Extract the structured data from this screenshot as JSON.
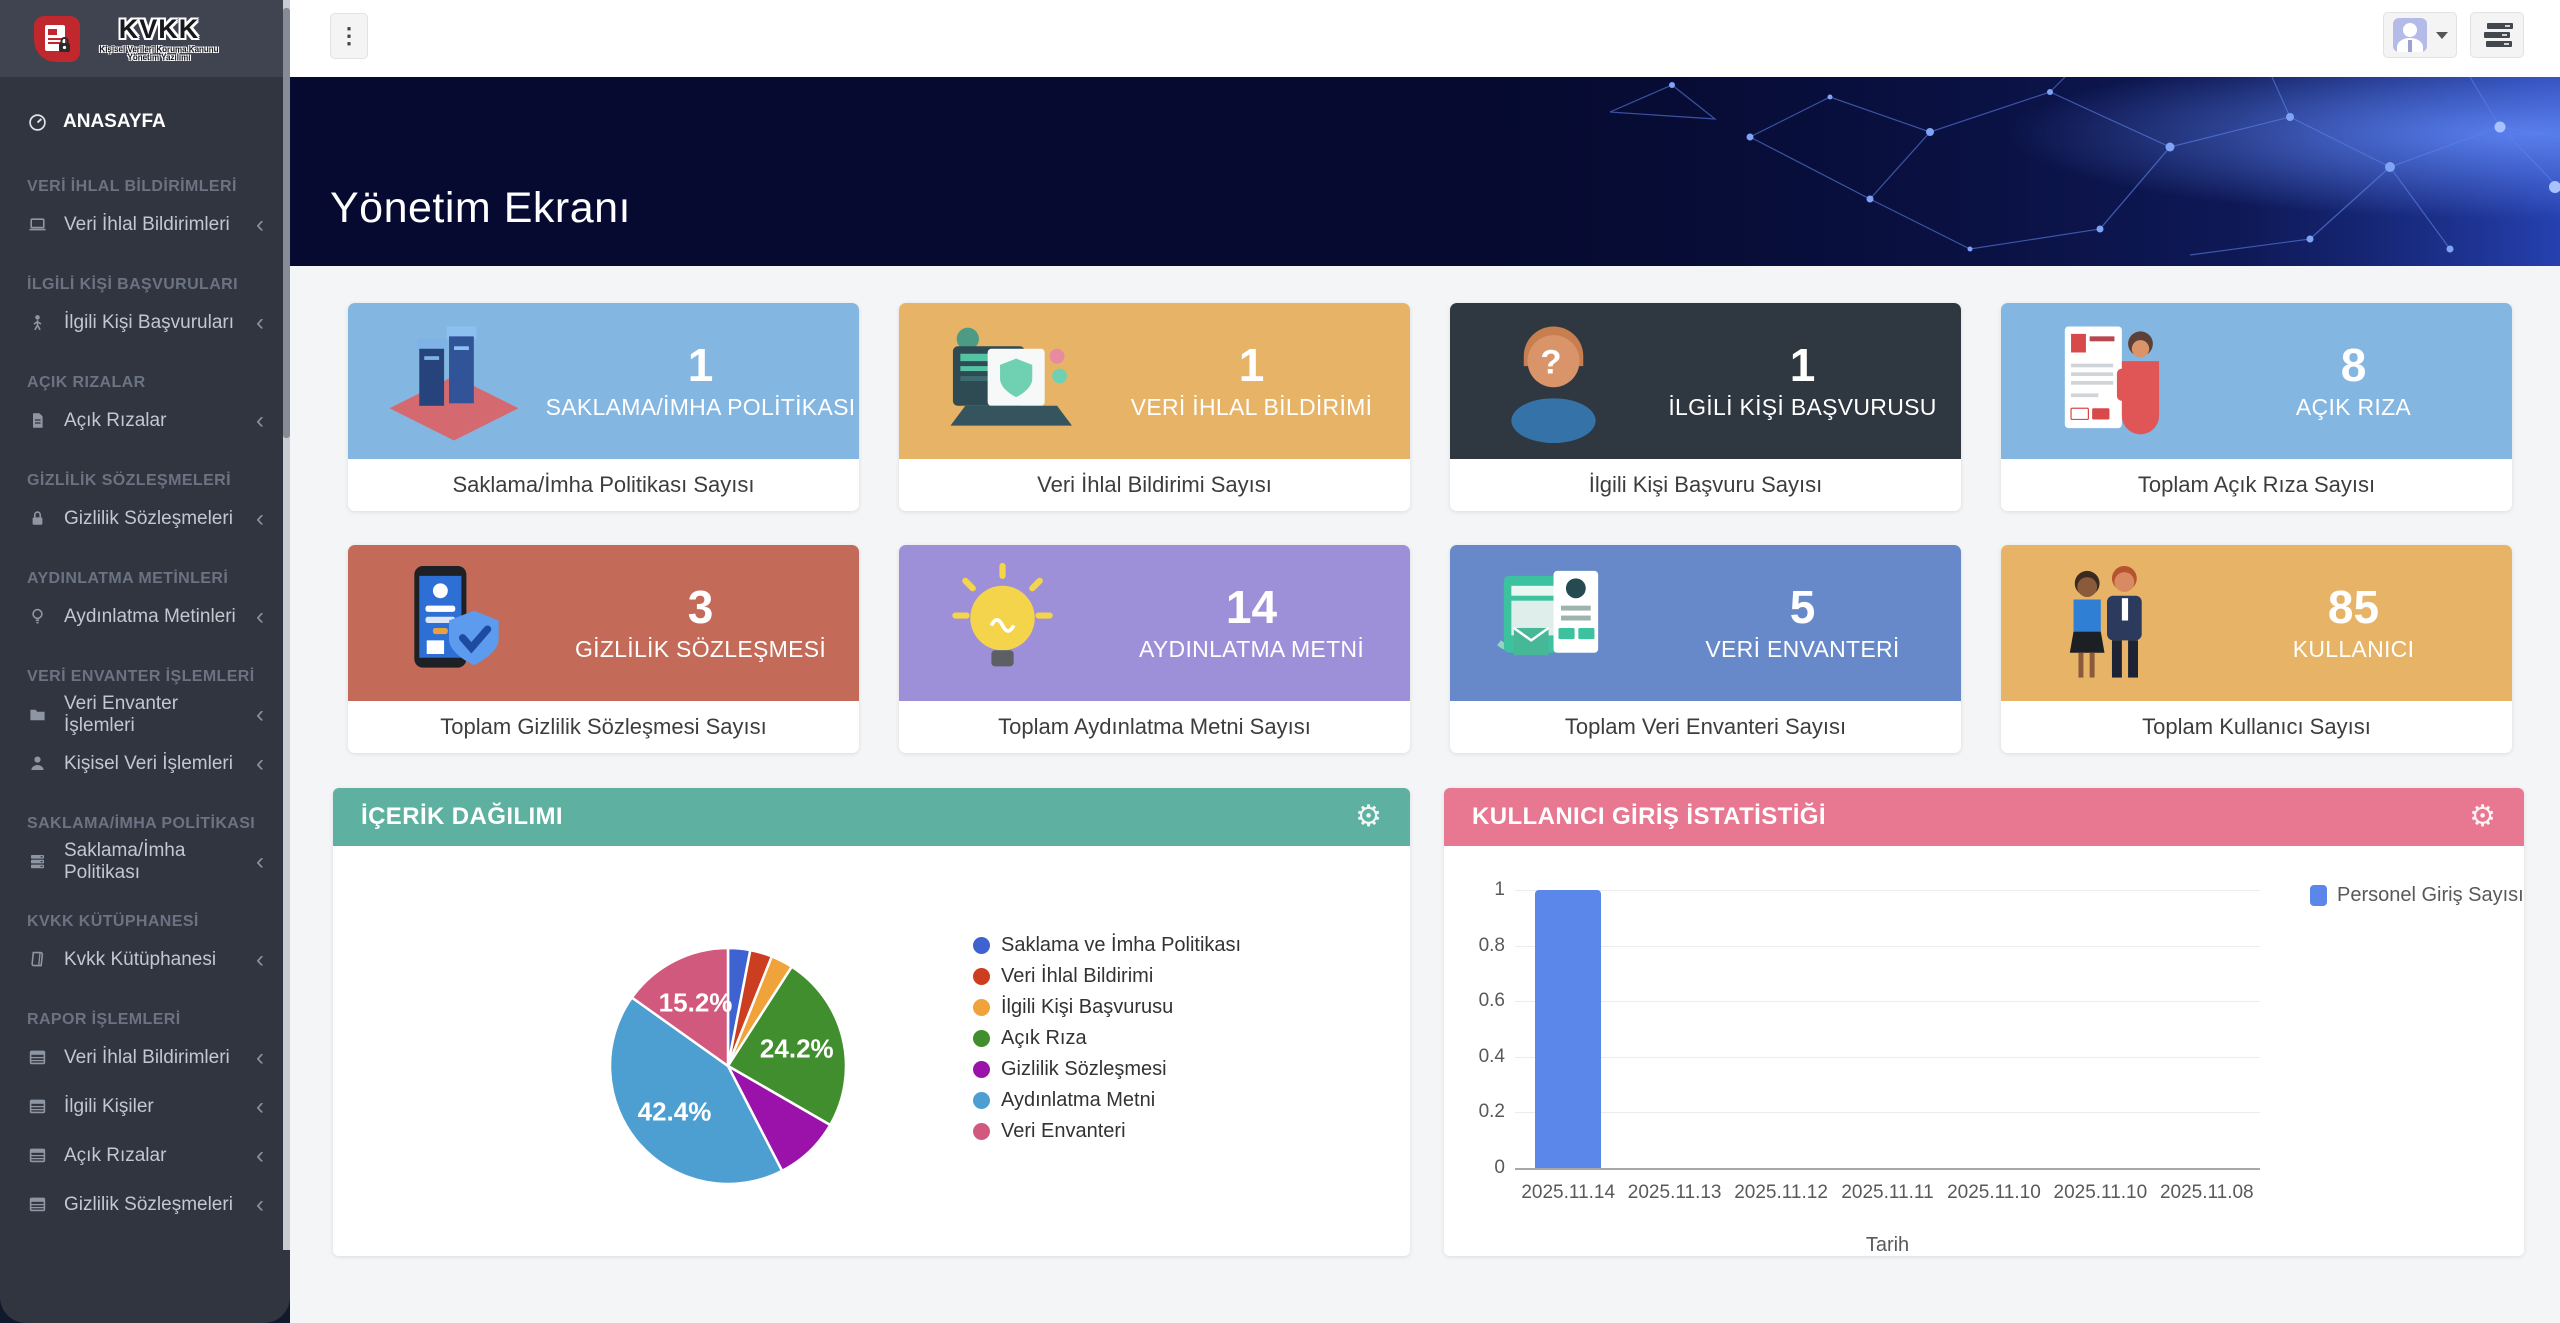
{
  "sidebar": {
    "logo": {
      "title": "KVKK",
      "subtitle": "Kişisel Verileri Koruma Kanunu Yönetim Yazılımı",
      "badge_icon": "document-lock-icon"
    },
    "home": {
      "label": "ANASAYFA",
      "icon": "gauge-icon"
    },
    "sections": [
      {
        "header": "VERİ İHLAL BİLDİRİMLERİ",
        "items": [
          {
            "label": "Veri İhlal Bildirimleri",
            "icon": "laptop-icon"
          }
        ]
      },
      {
        "header": "İLGİLİ KİŞİ BAŞVURULARI",
        "items": [
          {
            "label": "İlgili Kişi Başvuruları",
            "icon": "person-icon"
          }
        ]
      },
      {
        "header": "AÇIK RIZALAR",
        "items": [
          {
            "label": "Açık Rızalar",
            "icon": "file-icon"
          }
        ]
      },
      {
        "header": "GİZLİLİK SÖZLEŞMELERİ",
        "items": [
          {
            "label": "Gizlilik Sözleşmeleri",
            "icon": "lock-icon"
          }
        ]
      },
      {
        "header": "AYDINLATMA METİNLERİ",
        "items": [
          {
            "label": "Aydınlatma Metinleri",
            "icon": "bulb-icon"
          }
        ]
      },
      {
        "header": "VERİ ENVANTER İŞLEMLERİ",
        "items": [
          {
            "label": "Veri Envanter İşlemleri",
            "icon": "folder-icon"
          },
          {
            "label": "Kişisel Veri İşlemleri",
            "icon": "user-icon"
          }
        ]
      },
      {
        "header": "SAKLAMA/İMHA POLİTİKASI",
        "items": [
          {
            "label": "Saklama/İmha Politikası",
            "icon": "server-icon"
          }
        ]
      },
      {
        "header": "KVKK KÜTÜPHANESİ",
        "items": [
          {
            "label": "Kvkk Kütüphanesi",
            "icon": "book-icon"
          }
        ]
      },
      {
        "header": "RAPOR İŞLEMLERİ",
        "items": [
          {
            "label": "Veri İhlal Bildirimleri",
            "icon": "table-icon"
          },
          {
            "label": "İlgili Kişiler",
            "icon": "table-icon"
          },
          {
            "label": "Açık Rızalar",
            "icon": "table-icon"
          },
          {
            "label": "Gizlilik Sözleşmeleri",
            "icon": "table-icon"
          }
        ]
      }
    ]
  },
  "topbar": {
    "menu_button_icon": "vertical-ellipsis-icon",
    "user_button_icons": [
      "user-avatar",
      "caret-down-icon"
    ],
    "apps_button_icon": "server-list-icon"
  },
  "hero": {
    "title": "Yönetim Ekranı"
  },
  "cards": [
    {
      "value": "1",
      "label": "SAKLAMA/İMHA POLİTİKASI",
      "footer": "Saklama/İmha Politikası Sayısı",
      "color": "#84b6e2",
      "illustration": "archive-illustration"
    },
    {
      "value": "1",
      "label": "VERİ İHLAL BİLDİRİMİ",
      "footer": "Veri İhlal Bildirimi Sayısı",
      "color": "#e7b467",
      "illustration": "hacker-laptop-illustration"
    },
    {
      "value": "1",
      "label": "İLGİLİ KİŞİ BAŞVURUSU",
      "footer": "İlgili Kişi Başvuru Sayısı",
      "color": "#2f3741",
      "illustration": "question-person-illustration"
    },
    {
      "value": "8",
      "label": "AÇIK RIZA",
      "footer": "Toplam Açık Rıza Sayısı",
      "color": "#84b6e2",
      "illustration": "consent-form-illustration"
    },
    {
      "value": "3",
      "label": "GİZLİLİK SÖZLEŞMESİ",
      "footer": "Toplam Gizlilik Sözleşmesi Sayısı",
      "color": "#c36b58",
      "illustration": "phone-shield-illustration"
    },
    {
      "value": "14",
      "label": "AYDINLATMA METNİ",
      "footer": "Toplam Aydınlatma Metni Sayısı",
      "color": "#9e90d8",
      "illustration": "lightbulb-illustration"
    },
    {
      "value": "5",
      "label": "VERİ ENVANTERİ",
      "footer": "Toplam Veri Envanteri Sayısı",
      "color": "#6789ca",
      "illustration": "documents-illustration"
    },
    {
      "value": "85",
      "label": "KULLANICI",
      "footer": "Toplam Kullanıcı Sayısı",
      "color": "#e7b467",
      "illustration": "people-illustration"
    }
  ],
  "panels": {
    "content_distribution": {
      "title": "İÇERİK DAĞILIMI",
      "header_color": "#5eb1a0",
      "settings_icon": "gear-icon"
    },
    "login_stats": {
      "title": "KULLANICI GİRİŞ İSTATİSTİĞİ",
      "header_color": "#e87791",
      "settings_icon": "gear-icon"
    }
  },
  "chart_data": [
    {
      "type": "pie",
      "title": "İÇERİK DAĞILIMI",
      "labels": [
        "Saklama ve İmha Politikası",
        "Veri İhlal Bildirimi",
        "İlgili Kişi Başvurusu",
        "Açık Rıza",
        "Gizlilik Sözleşmesi",
        "Aydınlatma Metni",
        "Veri Envanteri"
      ],
      "values": [
        1,
        1,
        1,
        8,
        3,
        14,
        5
      ],
      "percentages": [
        3.0,
        3.0,
        3.0,
        24.2,
        9.1,
        42.4,
        15.2
      ],
      "colors": [
        "#3e63d0",
        "#cb3f20",
        "#f0a23b",
        "#418e2f",
        "#9a12aa",
        "#4d9fd2",
        "#d2597e"
      ],
      "shown_percent_labels": [
        "24.2%",
        "42.4%",
        "15.2%"
      ],
      "legend_position": "right"
    },
    {
      "type": "bar",
      "title": "KULLANICI GİRİŞ İSTATİSTİĞİ",
      "categories": [
        "2025.11.14",
        "2025.11.13",
        "2025.11.12",
        "2025.11.11",
        "2025.11.10",
        "2025.11.10",
        "2025.11.08"
      ],
      "series": [
        {
          "name": "Personel Giriş Sayısı",
          "color": "#5a87e9",
          "values": [
            1,
            0,
            0,
            0,
            0,
            0,
            0
          ]
        }
      ],
      "xlabel": "Tarih",
      "ylim": [
        0,
        1
      ],
      "yticks": [
        0,
        0.2,
        0.4,
        0.6,
        0.8,
        1
      ],
      "grid": true,
      "legend_position": "right"
    }
  ]
}
